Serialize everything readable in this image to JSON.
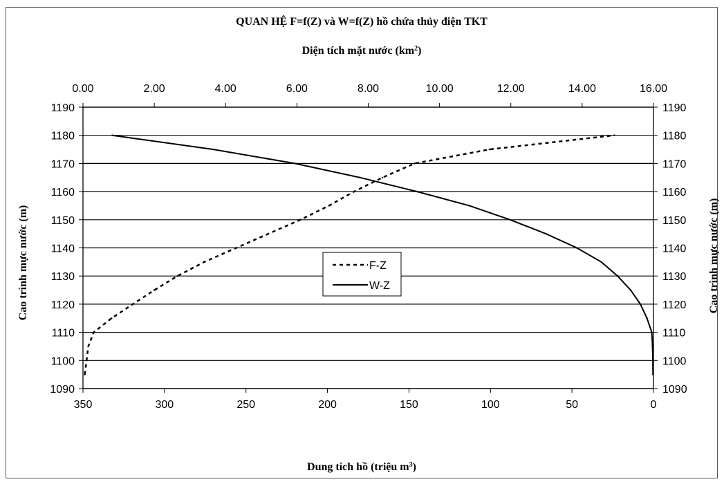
{
  "chart_data": {
    "type": "line",
    "title": "QUAN HỆ F=f(Z) và W=f(Z) hồ chứa thủy điện TKT",
    "x2label": "Diện tích mặt nước (km",
    "x2label_sup": "2",
    "x2label_suffix": ")",
    "xlabel": "Dung tích hồ (triệu m",
    "xlabel_sup": "3",
    "xlabel_suffix": ")",
    "ylabel_left": "Cao trình mực nước (m)",
    "ylabel_right": "Cao trình mực nước (m)",
    "ylim": [
      1090,
      1190
    ],
    "y_ticks": [
      "1090",
      "1100",
      "1110",
      "1120",
      "1130",
      "1140",
      "1150",
      "1160",
      "1170",
      "1180",
      "1190"
    ],
    "xlim_bottom": [
      350,
      0
    ],
    "x_ticks_bottom": [
      "350",
      "300",
      "250",
      "200",
      "150",
      "100",
      "50",
      "0"
    ],
    "xlim_top": [
      0,
      16
    ],
    "x_ticks_top": [
      "0.00",
      "2.00",
      "4.00",
      "6.00",
      "8.00",
      "10.00",
      "12.00",
      "14.00",
      "16.00"
    ],
    "grid": "horizontal",
    "legend_position": "center",
    "series": [
      {
        "name": "F-Z",
        "axis": "top",
        "style": "dashed",
        "color": "#000000",
        "points": [
          [
            0.05,
            1095
          ],
          [
            0.1,
            1100
          ],
          [
            0.15,
            1105
          ],
          [
            0.3,
            1110
          ],
          [
            0.8,
            1115
          ],
          [
            1.4,
            1120
          ],
          [
            2.0,
            1125
          ],
          [
            2.65,
            1130
          ],
          [
            3.4,
            1135
          ],
          [
            4.3,
            1140
          ],
          [
            5.2,
            1145
          ],
          [
            6.1,
            1150
          ],
          [
            6.9,
            1155
          ],
          [
            7.6,
            1160
          ],
          [
            8.4,
            1165
          ],
          [
            9.3,
            1170
          ],
          [
            11.4,
            1175
          ],
          [
            14.9,
            1180
          ]
        ]
      },
      {
        "name": "W-Z",
        "axis": "bottom",
        "style": "solid",
        "color": "#000000",
        "points": [
          [
            0.3,
            1095
          ],
          [
            0.4,
            1100
          ],
          [
            0.6,
            1105
          ],
          [
            1.0,
            1110
          ],
          [
            4,
            1115
          ],
          [
            8,
            1120
          ],
          [
            14,
            1125
          ],
          [
            22,
            1130
          ],
          [
            32,
            1135
          ],
          [
            47,
            1140
          ],
          [
            66,
            1145
          ],
          [
            88,
            1150
          ],
          [
            113,
            1155
          ],
          [
            145,
            1160
          ],
          [
            180,
            1165
          ],
          [
            220,
            1170
          ],
          [
            270,
            1175
          ],
          [
            332,
            1180
          ]
        ]
      }
    ]
  }
}
